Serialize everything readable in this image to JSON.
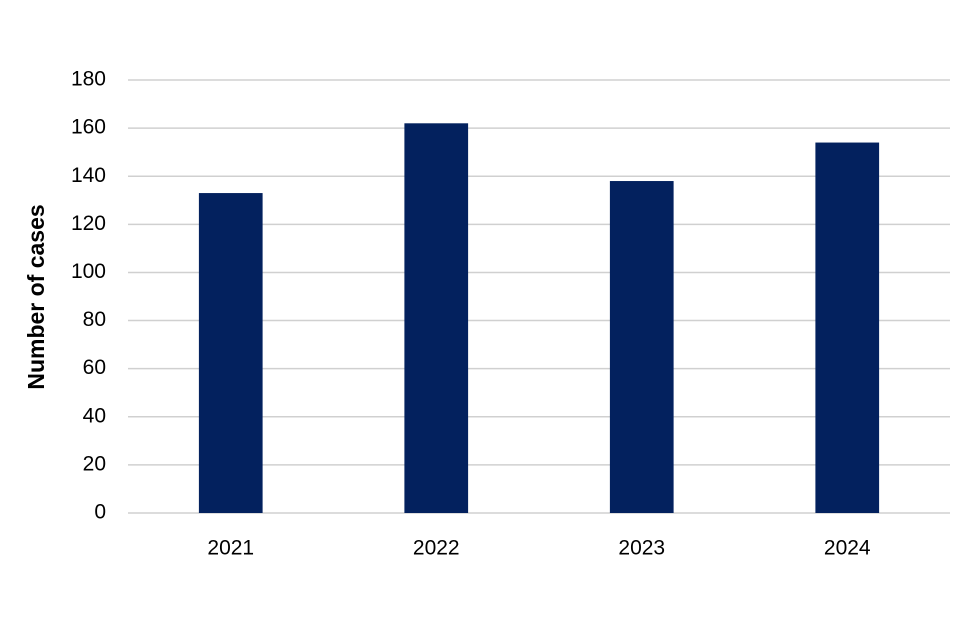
{
  "chart_data": {
    "type": "bar",
    "y_label": "Number of cases",
    "categories": [
      "2021",
      "2022",
      "2023",
      "2024"
    ],
    "values": [
      133,
      162,
      138,
      154
    ],
    "color": "#03215e",
    "ylim": [
      0,
      180
    ],
    "yticks": [
      0,
      20,
      40,
      60,
      80,
      100,
      120,
      140,
      160,
      180
    ],
    "grid": true
  }
}
